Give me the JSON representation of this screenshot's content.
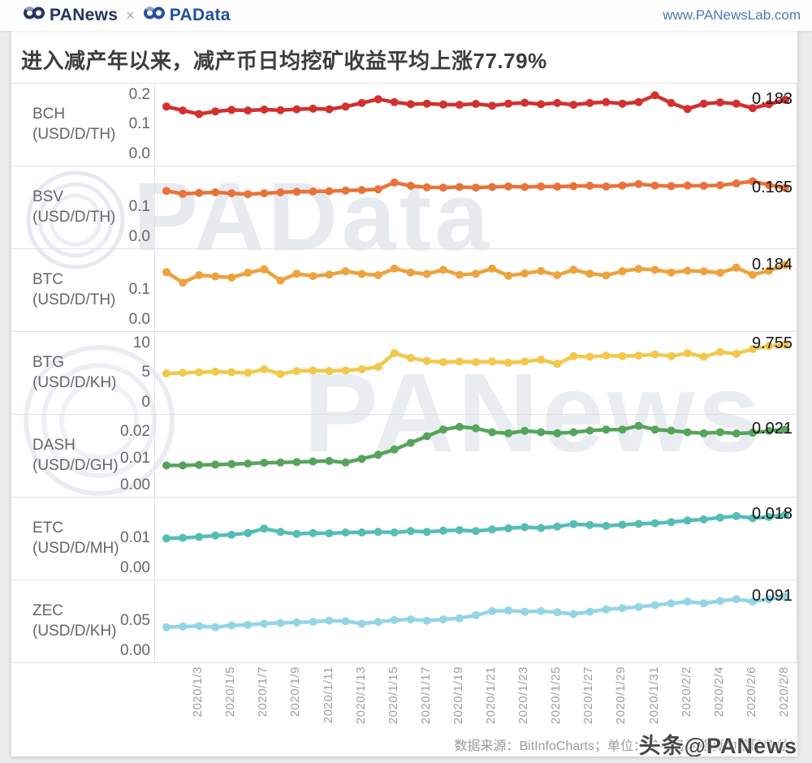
{
  "header": {
    "logo_news": "PANews",
    "logo_separator": "×",
    "logo_data": "PAData",
    "url": "www.PANewsLab.com"
  },
  "title": "进入减产年以来，减产币日均挖矿收益平均上涨77.79%",
  "watermarks": {
    "center": "PAData",
    "lower": "PANews",
    "toutiao": "头条@PANews"
  },
  "footer": {
    "source_note": "数据来源：BitInfoCharts；单位：参考各网络算力挖矿收益"
  },
  "chart_data": {
    "type": "line",
    "layout": "7 stacked small-multiple line charts sharing one x axis, markers on every point, value label at line end",
    "title": "进入减产年以来，减产币日均挖矿收益平均上涨77.79%",
    "x_label": "",
    "grid": false,
    "x_dates": [
      "2020/1/1",
      "2020/1/2",
      "2020/1/3",
      "2020/1/4",
      "2020/1/5",
      "2020/1/6",
      "2020/1/7",
      "2020/1/8",
      "2020/1/9",
      "2020/1/10",
      "2020/1/11",
      "2020/1/12",
      "2020/1/13",
      "2020/1/14",
      "2020/1/15",
      "2020/1/16",
      "2020/1/17",
      "2020/1/18",
      "2020/1/19",
      "2020/1/20",
      "2020/1/21",
      "2020/1/22",
      "2020/1/23",
      "2020/1/24",
      "2020/1/25",
      "2020/1/26",
      "2020/1/27",
      "2020/1/28",
      "2020/1/29",
      "2020/1/30",
      "2020/1/31",
      "2020/2/1",
      "2020/2/2",
      "2020/2/3",
      "2020/2/4",
      "2020/2/5",
      "2020/2/6",
      "2020/2/7",
      "2020/2/8"
    ],
    "x_tick_indices": [
      2,
      4,
      6,
      8,
      10,
      12,
      14,
      16,
      18,
      20,
      22,
      24,
      26,
      28,
      30,
      32,
      34,
      36,
      38
    ],
    "x_tick_labels": [
      "2020/1/3",
      "2020/1/5",
      "2020/1/7",
      "2020/1/9",
      "2020/1/11",
      "2020/1/13",
      "2020/1/15",
      "2020/1/17",
      "2020/1/19",
      "2020/1/21",
      "2020/1/23",
      "2020/1/25",
      "2020/1/27",
      "2020/1/29",
      "2020/1/31",
      "2020/2/2",
      "2020/2/4",
      "2020/2/6",
      "2020/2/8"
    ],
    "panels": [
      {
        "name": "BCH (USD/D/TH)",
        "color": "#d3302f",
        "ymax": 0.21,
        "yticks": [
          {
            "label": "0.2",
            "value": 0.2
          },
          {
            "label": "0.1",
            "value": 0.1
          },
          {
            "label": "0.0",
            "value": 0.0
          }
        ],
        "end_label": "0.183",
        "values": [
          0.16,
          0.147,
          0.135,
          0.144,
          0.149,
          0.147,
          0.15,
          0.148,
          0.151,
          0.153,
          0.151,
          0.16,
          0.172,
          0.185,
          0.175,
          0.168,
          0.17,
          0.167,
          0.166,
          0.169,
          0.163,
          0.17,
          0.173,
          0.168,
          0.172,
          0.166,
          0.172,
          0.175,
          0.17,
          0.175,
          0.198,
          0.172,
          0.152,
          0.17,
          0.174,
          0.17,
          0.155,
          0.168,
          0.183
        ]
      },
      {
        "name": "BSV (USD/D/TH)",
        "color": "#e8733a",
        "ymax": 0.21,
        "yticks": [
          {
            "label": "0.1",
            "value": 0.1
          },
          {
            "label": "0.0",
            "value": 0.0
          }
        ],
        "end_label": "0.165",
        "values": [
          0.155,
          0.145,
          0.148,
          0.15,
          0.147,
          0.144,
          0.147,
          0.15,
          0.152,
          0.153,
          0.154,
          0.156,
          0.158,
          0.16,
          0.183,
          0.172,
          0.167,
          0.166,
          0.168,
          0.166,
          0.168,
          0.17,
          0.168,
          0.17,
          0.169,
          0.171,
          0.172,
          0.17,
          0.173,
          0.178,
          0.173,
          0.171,
          0.173,
          0.172,
          0.174,
          0.18,
          0.187,
          0.175,
          0.165
        ]
      },
      {
        "name": "BTC (USD/D/TH)",
        "color": "#eda23c",
        "ymax": 0.21,
        "yticks": [
          {
            "label": "0.1",
            "value": 0.1
          },
          {
            "label": "0.0",
            "value": 0.0
          }
        ],
        "end_label": "0.184",
        "values": [
          0.16,
          0.125,
          0.15,
          0.146,
          0.142,
          0.158,
          0.17,
          0.132,
          0.155,
          0.147,
          0.152,
          0.163,
          0.154,
          0.15,
          0.172,
          0.159,
          0.154,
          0.168,
          0.151,
          0.155,
          0.172,
          0.148,
          0.156,
          0.164,
          0.15,
          0.168,
          0.155,
          0.149,
          0.163,
          0.171,
          0.168,
          0.159,
          0.165,
          0.163,
          0.158,
          0.175,
          0.151,
          0.165,
          0.184
        ]
      },
      {
        "name": "BTG (USD/D/KH)",
        "color": "#f1c84b",
        "ymax": 10.5,
        "yticks": [
          {
            "label": "10",
            "value": 10
          },
          {
            "label": "5",
            "value": 5
          },
          {
            "label": "0",
            "value": 0
          }
        ],
        "end_label": "9.755",
        "values": [
          4.9,
          5.0,
          5.1,
          5.2,
          5.1,
          5.0,
          5.6,
          4.8,
          5.3,
          5.4,
          5.3,
          5.4,
          5.6,
          6.0,
          8.3,
          7.5,
          7.0,
          6.8,
          6.9,
          6.8,
          6.9,
          6.7,
          6.9,
          7.2,
          6.5,
          7.8,
          7.7,
          7.9,
          7.8,
          7.9,
          8.1,
          7.8,
          8.3,
          7.7,
          8.5,
          8.2,
          9.0,
          9.5,
          9.755
        ]
      },
      {
        "name": "DASH (USD/D/GH)",
        "color": "#56a45c",
        "ymax": 0.0235,
        "yticks": [
          {
            "label": "0.02",
            "value": 0.02
          },
          {
            "label": "0.01",
            "value": 0.01
          },
          {
            "label": "0.00",
            "value": 0.0
          }
        ],
        "end_label": "0.021",
        "values": [
          0.0075,
          0.0075,
          0.0077,
          0.0078,
          0.008,
          0.0082,
          0.0085,
          0.0086,
          0.0088,
          0.009,
          0.0092,
          0.0086,
          0.01,
          0.0115,
          0.0135,
          0.016,
          0.0185,
          0.021,
          0.022,
          0.0215,
          0.02,
          0.0196,
          0.0205,
          0.02,
          0.0196,
          0.02,
          0.0206,
          0.021,
          0.021,
          0.0224,
          0.021,
          0.0206,
          0.02,
          0.0196,
          0.02,
          0.0195,
          0.0198,
          0.0205,
          0.021
        ]
      },
      {
        "name": "ETC (USD/D/MH)",
        "color": "#55bdb4",
        "ymax": 0.021,
        "yticks": [
          {
            "label": "0.01",
            "value": 0.01
          },
          {
            "label": "0.00",
            "value": 0.0
          }
        ],
        "end_label": "0.018",
        "values": [
          0.01,
          0.0102,
          0.0105,
          0.011,
          0.0112,
          0.0118,
          0.0133,
          0.0122,
          0.0115,
          0.0118,
          0.0117,
          0.012,
          0.012,
          0.0122,
          0.012,
          0.0125,
          0.0122,
          0.0126,
          0.0128,
          0.0125,
          0.013,
          0.0134,
          0.0138,
          0.0135,
          0.014,
          0.0148,
          0.0145,
          0.0142,
          0.0146,
          0.0149,
          0.0151,
          0.0155,
          0.016,
          0.0164,
          0.017,
          0.0175,
          0.0168,
          0.0172,
          0.018
        ]
      },
      {
        "name": "ZEC (USD/D/KH)",
        "color": "#93d5e4",
        "ymax": 0.105,
        "yticks": [
          {
            "label": "0.05",
            "value": 0.05
          },
          {
            "label": "0.00",
            "value": 0.0
          }
        ],
        "end_label": "0.091",
        "values": [
          0.04,
          0.041,
          0.042,
          0.04,
          0.043,
          0.044,
          0.046,
          0.047,
          0.048,
          0.049,
          0.051,
          0.05,
          0.046,
          0.049,
          0.052,
          0.053,
          0.051,
          0.053,
          0.055,
          0.06,
          0.067,
          0.068,
          0.066,
          0.067,
          0.065,
          0.062,
          0.066,
          0.07,
          0.072,
          0.074,
          0.077,
          0.08,
          0.083,
          0.08,
          0.084,
          0.087,
          0.083,
          0.087,
          0.091
        ]
      }
    ]
  }
}
